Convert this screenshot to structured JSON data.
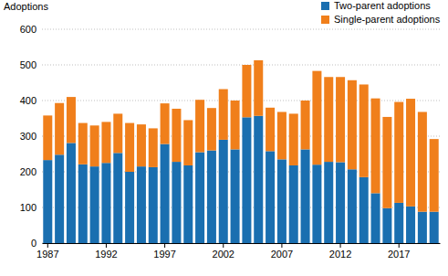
{
  "chart_data": {
    "type": "bar",
    "stacked": true,
    "grid": true,
    "legend": "top-right",
    "y_label": "Adoptions",
    "categories": [
      1987,
      null,
      null,
      null,
      null,
      1992,
      null,
      null,
      null,
      null,
      1997,
      null,
      null,
      null,
      null,
      2002,
      null,
      null,
      null,
      null,
      2007,
      null,
      null,
      null,
      null,
      2012,
      null,
      null,
      null,
      null,
      2017,
      null,
      null,
      null
    ],
    "series": [
      {
        "name": "Two-parent adoptions",
        "color": "#1a6fb0",
        "values": [
          233,
          248,
          281,
          221,
          215,
          225,
          253,
          200,
          215,
          213,
          278,
          228,
          218,
          255,
          260,
          290,
          263,
          353,
          357,
          258,
          235,
          218,
          263,
          220,
          228,
          227,
          207,
          185,
          140,
          98,
          113,
          103,
          88,
          88
        ]
      },
      {
        "name": "Single-parent adoptions",
        "color": "#f07f1b",
        "values": [
          125,
          145,
          129,
          116,
          115,
          115,
          110,
          137,
          118,
          109,
          114,
          149,
          127,
          147,
          119,
          142,
          137,
          147,
          156,
          122,
          133,
          145,
          137,
          263,
          238,
          239,
          250,
          260,
          266,
          256,
          283,
          302,
          280,
          204
        ]
      }
    ],
    "ylim": [
      0,
      600
    ],
    "yticks": [
      0,
      100,
      200,
      300,
      400,
      500,
      600
    ]
  }
}
